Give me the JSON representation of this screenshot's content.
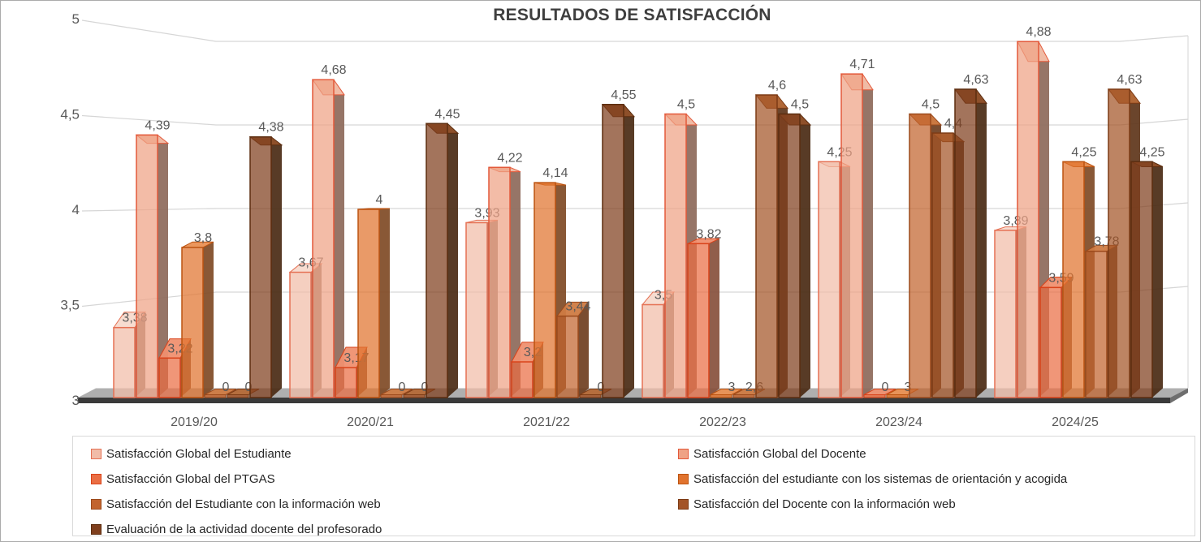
{
  "title": "RESULTADOS DE SATISFACCIÓN",
  "chart_data": {
    "type": "bar",
    "style": "3d-clustered-column",
    "title": "RESULTADOS DE SATISFACCIÓN",
    "categories": [
      "2019/20",
      "2020/21",
      "2021/22",
      "2022/23",
      "2023/24",
      "2024/25"
    ],
    "series": [
      {
        "name": "Satisfacción Global del Estudiante",
        "values": [
          3.38,
          3.67,
          3.93,
          3.5,
          4.25,
          3.89
        ],
        "fill": "#F1BCA8",
        "border": "#E57154",
        "side": "#8F7568",
        "top": "#F7DACD"
      },
      {
        "name": "Satisfacción Global del Docente",
        "values": [
          4.39,
          4.68,
          4.22,
          4.5,
          4.71,
          4.88
        ],
        "fill": "#EFA285",
        "border": "#E3593A",
        "side": "#8D695A",
        "top": "#F4BFA9"
      },
      {
        "name": "Satisfacción Global del PTGAS",
        "values": [
          3.22,
          3.17,
          3.2,
          3.82,
          0,
          3.59
        ],
        "fill": "#EA6E44",
        "border": "#D9431A",
        "side": "#87503C",
        "top": "#EF9070"
      },
      {
        "name": "Satisfacción del estudiante con los sistemas de orientación y acogida",
        "values": [
          3.8,
          4,
          4.14,
          3,
          3,
          4.25
        ],
        "fill": "#E1732E",
        "border": "#BC5310",
        "side": "#7F4A25",
        "top": "#EA9154"
      },
      {
        "name": "Satisfacción del Estudiante con la información web",
        "values": [
          0,
          0,
          3.44,
          2.6,
          4.5,
          3.78
        ],
        "fill": "#C2642E",
        "border": "#9C4A1C",
        "side": "#6F3E20",
        "top": "#CF7B43"
      },
      {
        "name": "Satisfacción del Docente con la información web",
        "values": [
          0,
          0,
          0,
          4.6,
          4.4,
          4.63
        ],
        "fill": "#A35427",
        "border": "#7D3B15",
        "side": "#5E351A",
        "top": "#B56A38"
      },
      {
        "name": "Evaluación de la actividad docente del profesorado",
        "values": [
          4.38,
          4.45,
          4.55,
          4.5,
          4.63,
          4.25
        ],
        "fill": "#7F3F1D",
        "border": "#5C2D0F",
        "side": "#4A2A13",
        "top": "#91512A"
      }
    ],
    "ylim": [
      3,
      5
    ],
    "yticks": [
      5,
      4.5,
      4,
      3.5,
      3
    ],
    "ytick_labels": [
      "5",
      "4,5",
      "4",
      "3,5",
      "3"
    ],
    "decimal_separator": ",",
    "grid": true,
    "data_labels": true,
    "legend_position": "bottom-two-columns",
    "colors": {
      "label_color": "#595959",
      "axis_color": "#595959",
      "title_color": "#3F3F3F",
      "grid_color": "#D6D6D6",
      "floor_top": "#AFAFAF",
      "floor_front": "#3A3A3A",
      "floor_side": "#6E6E6E",
      "legend_border": "#D9D9D9",
      "legend_text": "#262626",
      "frame_border": "#ABABAB"
    }
  }
}
